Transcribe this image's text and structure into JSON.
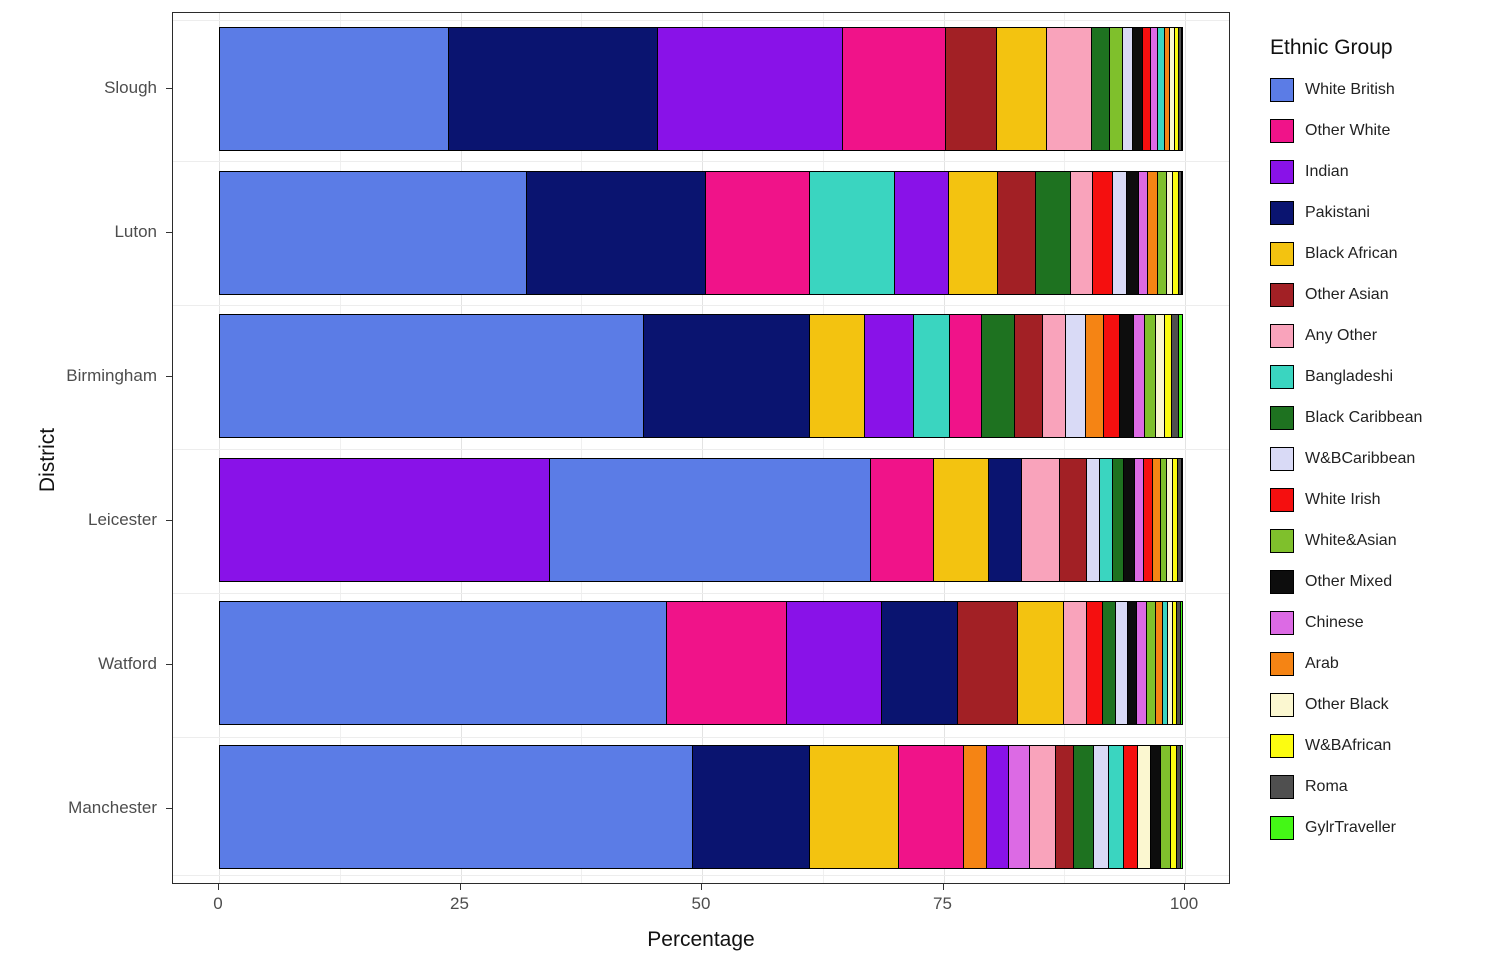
{
  "chart_data": {
    "type": "bar",
    "orientation": "horizontal",
    "stacked": true,
    "title": "",
    "xlabel": "Percentage",
    "ylabel": "District",
    "legend_title": "Ethnic Group",
    "xlim": [
      0,
      100
    ],
    "x_ticks": [
      0,
      25,
      50,
      75,
      100
    ],
    "grid": true,
    "legend_position": "right",
    "groups": [
      {
        "name": "White British",
        "color": "#5b7ce6"
      },
      {
        "name": "Other White",
        "color": "#f01389"
      },
      {
        "name": "Indian",
        "color": "#8912e8"
      },
      {
        "name": "Pakistani",
        "color": "#0a1470"
      },
      {
        "name": "Black African",
        "color": "#f3c310"
      },
      {
        "name": "Other Asian",
        "color": "#a22025"
      },
      {
        "name": "Any Other",
        "color": "#f9a3bb"
      },
      {
        "name": "Bangladeshi",
        "color": "#3ad5c0"
      },
      {
        "name": "Black Caribbean",
        "color": "#1e7220"
      },
      {
        "name": "W&BCaribbean",
        "color": "#d9daf6"
      },
      {
        "name": "White Irish",
        "color": "#f50f0f"
      },
      {
        "name": "White&Asian",
        "color": "#7fc02c"
      },
      {
        "name": "Other Mixed",
        "color": "#0d0d0d"
      },
      {
        "name": "Chinese",
        "color": "#dc6ae4"
      },
      {
        "name": "Arab",
        "color": "#f58414"
      },
      {
        "name": "Other Black",
        "color": "#fbf7d0"
      },
      {
        "name": "W&BAfrican",
        "color": "#fcfc11"
      },
      {
        "name": "Roma",
        "color": "#4f4f4f"
      },
      {
        "name": "GylrTraveller",
        "color": "#44f716"
      }
    ],
    "districts": [
      {
        "name": "Slough",
        "segments": [
          {
            "group": "White British",
            "value": 23.8
          },
          {
            "group": "Pakistani",
            "value": 21.7
          },
          {
            "group": "Indian",
            "value": 19.2
          },
          {
            "group": "Other White",
            "value": 10.7
          },
          {
            "group": "Other Asian",
            "value": 5.3
          },
          {
            "group": "Black African",
            "value": 5.2
          },
          {
            "group": "Any Other",
            "value": 4.6
          },
          {
            "group": "Black Caribbean",
            "value": 1.9
          },
          {
            "group": "White&Asian",
            "value": 1.4
          },
          {
            "group": "W&BCaribbean",
            "value": 1.0
          },
          {
            "group": "Other Mixed",
            "value": 1.0
          },
          {
            "group": "White Irish",
            "value": 0.9
          },
          {
            "group": "Chinese",
            "value": 0.7
          },
          {
            "group": "Bangladeshi",
            "value": 0.7
          },
          {
            "group": "Arab",
            "value": 0.6
          },
          {
            "group": "Other Black",
            "value": 0.5
          },
          {
            "group": "W&BAfrican",
            "value": 0.4
          },
          {
            "group": "Roma",
            "value": 0.3
          },
          {
            "group": "GylrTraveller",
            "value": 0.1
          }
        ]
      },
      {
        "name": "Luton",
        "segments": [
          {
            "group": "White British",
            "value": 31.8
          },
          {
            "group": "Pakistani",
            "value": 18.6
          },
          {
            "group": "Other White",
            "value": 10.8
          },
          {
            "group": "Bangladeshi",
            "value": 8.8
          },
          {
            "group": "Indian",
            "value": 5.6
          },
          {
            "group": "Black African",
            "value": 5.1
          },
          {
            "group": "Other Asian",
            "value": 3.9
          },
          {
            "group": "Black Caribbean",
            "value": 3.7
          },
          {
            "group": "Any Other",
            "value": 2.3
          },
          {
            "group": "White Irish",
            "value": 2.0
          },
          {
            "group": "W&BCaribbean",
            "value": 1.5
          },
          {
            "group": "Other Mixed",
            "value": 1.2
          },
          {
            "group": "Chinese",
            "value": 1.0
          },
          {
            "group": "Arab",
            "value": 1.0
          },
          {
            "group": "White&Asian",
            "value": 0.9
          },
          {
            "group": "Other Black",
            "value": 0.7
          },
          {
            "group": "W&BAfrican",
            "value": 0.6
          },
          {
            "group": "Roma",
            "value": 0.3
          },
          {
            "group": "GylrTraveller",
            "value": 0.2
          }
        ]
      },
      {
        "name": "Birmingham",
        "segments": [
          {
            "group": "White British",
            "value": 44.0
          },
          {
            "group": "Pakistani",
            "value": 17.2
          },
          {
            "group": "Black African",
            "value": 5.7
          },
          {
            "group": "Indian",
            "value": 5.1
          },
          {
            "group": "Bangladeshi",
            "value": 3.7
          },
          {
            "group": "Other White",
            "value": 3.4
          },
          {
            "group": "Black Caribbean",
            "value": 3.4
          },
          {
            "group": "Other Asian",
            "value": 2.9
          },
          {
            "group": "Any Other",
            "value": 2.4
          },
          {
            "group": "W&BCaribbean",
            "value": 2.0
          },
          {
            "group": "Arab",
            "value": 1.9
          },
          {
            "group": "White Irish",
            "value": 1.7
          },
          {
            "group": "Other Mixed",
            "value": 1.4
          },
          {
            "group": "Chinese",
            "value": 1.2
          },
          {
            "group": "White&Asian",
            "value": 1.1
          },
          {
            "group": "Other Black",
            "value": 0.9
          },
          {
            "group": "W&BAfrican",
            "value": 0.8
          },
          {
            "group": "Roma",
            "value": 0.7
          },
          {
            "group": "GylrTraveller",
            "value": 0.5
          }
        ]
      },
      {
        "name": "Leicester",
        "segments": [
          {
            "group": "Indian",
            "value": 34.2
          },
          {
            "group": "White British",
            "value": 33.3
          },
          {
            "group": "Other White",
            "value": 6.6
          },
          {
            "group": "Black African",
            "value": 5.7
          },
          {
            "group": "Pakistani",
            "value": 3.4
          },
          {
            "group": "Any Other",
            "value": 3.9
          },
          {
            "group": "Other Asian",
            "value": 2.8
          },
          {
            "group": "W&BCaribbean",
            "value": 1.4
          },
          {
            "group": "Bangladeshi",
            "value": 1.3
          },
          {
            "group": "Black Caribbean",
            "value": 1.2
          },
          {
            "group": "Other Mixed",
            "value": 1.1
          },
          {
            "group": "Chinese",
            "value": 1.0
          },
          {
            "group": "White Irish",
            "value": 0.9
          },
          {
            "group": "Arab",
            "value": 0.8
          },
          {
            "group": "White&Asian",
            "value": 0.7
          },
          {
            "group": "Other Black",
            "value": 0.6
          },
          {
            "group": "W&BAfrican",
            "value": 0.5
          },
          {
            "group": "Roma",
            "value": 0.4
          },
          {
            "group": "GylrTraveller",
            "value": 0.2
          }
        ]
      },
      {
        "name": "Watford",
        "segments": [
          {
            "group": "White British",
            "value": 46.0
          },
          {
            "group": "Other White",
            "value": 12.4
          },
          {
            "group": "Indian",
            "value": 9.8
          },
          {
            "group": "Pakistani",
            "value": 7.8
          },
          {
            "group": "Other Asian",
            "value": 6.2
          },
          {
            "group": "Black African",
            "value": 4.7
          },
          {
            "group": "Any Other",
            "value": 2.4
          },
          {
            "group": "White Irish",
            "value": 1.7
          },
          {
            "group": "Black Caribbean",
            "value": 1.3
          },
          {
            "group": "W&BCaribbean",
            "value": 1.2
          },
          {
            "group": "Other Mixed",
            "value": 1.0
          },
          {
            "group": "Chinese",
            "value": 1.0
          },
          {
            "group": "White&Asian",
            "value": 0.9
          },
          {
            "group": "Arab",
            "value": 0.7
          },
          {
            "group": "Bangladeshi",
            "value": 0.6
          },
          {
            "group": "Other Black",
            "value": 0.5
          },
          {
            "group": "W&BAfrican",
            "value": 0.4
          },
          {
            "group": "Roma",
            "value": 0.4
          },
          {
            "group": "GylrTraveller",
            "value": 0.3
          }
        ]
      },
      {
        "name": "Manchester",
        "segments": [
          {
            "group": "White British",
            "value": 48.3
          },
          {
            "group": "Pakistani",
            "value": 11.9
          },
          {
            "group": "Black African",
            "value": 9.1
          },
          {
            "group": "Other White",
            "value": 6.6
          },
          {
            "group": "Arab",
            "value": 2.4
          },
          {
            "group": "Indian",
            "value": 2.2
          },
          {
            "group": "Chinese",
            "value": 2.2
          },
          {
            "group": "Any Other",
            "value": 2.6
          },
          {
            "group": "Other Asian",
            "value": 1.9
          },
          {
            "group": "Black Caribbean",
            "value": 2.0
          },
          {
            "group": "W&BCaribbean",
            "value": 1.6
          },
          {
            "group": "Bangladeshi",
            "value": 1.5
          },
          {
            "group": "White Irish",
            "value": 1.4
          },
          {
            "group": "Other Black",
            "value": 1.3
          },
          {
            "group": "Other Mixed",
            "value": 1.1
          },
          {
            "group": "White&Asian",
            "value": 1.0
          },
          {
            "group": "W&BAfrican",
            "value": 0.6
          },
          {
            "group": "Roma",
            "value": 0.4
          },
          {
            "group": "GylrTraveller",
            "value": 0.3
          }
        ]
      }
    ]
  }
}
